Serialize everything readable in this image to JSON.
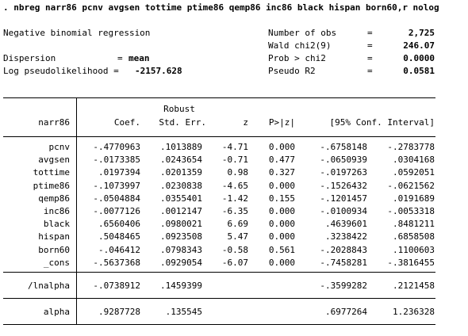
{
  "command": ". nbreg narr86 pcnv avgsen tottime ptime86 qemp86 inc86 black hispan born60,r nolog",
  "model_title": "Negative binomial regression",
  "dispersion_label": "Dispersion",
  "dispersion_eq": "=",
  "dispersion_value": "mean",
  "loglik_label": "Log pseudolikelihood =",
  "loglik_value": "-2157.628",
  "stats": [
    {
      "label": "Number of obs",
      "eq": "=",
      "value": "2,725"
    },
    {
      "label": "Wald chi2(9)",
      "eq": "=",
      "value": "246.07"
    },
    {
      "label": "Prob > chi2",
      "eq": "=",
      "value": "0.0000"
    },
    {
      "label": "Pseudo R2",
      "eq": "=",
      "value": "0.0581"
    }
  ],
  "header": {
    "depvar": "narr86",
    "robust": "Robust",
    "coef": "Coef.",
    "stderr": "Std. Err.",
    "z": "z",
    "p": "P>|z|",
    "ci": "[95% Conf. Interval]"
  },
  "rows": [
    {
      "var": "pcnv",
      "coef": "-.4770963",
      "se": ".1013889",
      "z": "-4.71",
      "p": "0.000",
      "lo": "-.6758148",
      "hi": "-.2783778"
    },
    {
      "var": "avgsen",
      "coef": "-.0173385",
      "se": ".0243654",
      "z": "-0.71",
      "p": "0.477",
      "lo": "-.0650939",
      "hi": ".0304168"
    },
    {
      "var": "tottime",
      "coef": ".0197394",
      "se": ".0201359",
      "z": "0.98",
      "p": "0.327",
      "lo": "-.0197263",
      "hi": ".0592051"
    },
    {
      "var": "ptime86",
      "coef": "-.1073997",
      "se": ".0230838",
      "z": "-4.65",
      "p": "0.000",
      "lo": "-.1526432",
      "hi": "-.0621562"
    },
    {
      "var": "qemp86",
      "coef": "-.0504884",
      "se": ".0355401",
      "z": "-1.42",
      "p": "0.155",
      "lo": "-.1201457",
      "hi": ".0191689"
    },
    {
      "var": "inc86",
      "coef": "-.0077126",
      "se": ".0012147",
      "z": "-6.35",
      "p": "0.000",
      "lo": "-.0100934",
      "hi": "-.0053318"
    },
    {
      "var": "black",
      "coef": ".6560406",
      "se": ".0980021",
      "z": "6.69",
      "p": "0.000",
      "lo": ".4639601",
      "hi": ".8481211"
    },
    {
      "var": "hispan",
      "coef": ".5048465",
      "se": ".0923508",
      "z": "5.47",
      "p": "0.000",
      "lo": ".3238422",
      "hi": ".6858508"
    },
    {
      "var": "born60",
      "coef": "-.046412",
      "se": ".0798343",
      "z": "-0.58",
      "p": "0.561",
      "lo": "-.2028843",
      "hi": ".1100603"
    },
    {
      "var": "_cons",
      "coef": "-.5637368",
      "se": ".0929054",
      "z": "-6.07",
      "p": "0.000",
      "lo": "-.7458281",
      "hi": "-.3816455"
    }
  ],
  "lnalpha": {
    "var": "/lnalpha",
    "coef": "-.0738912",
    "se": ".1459399",
    "lo": "-.3599282",
    "hi": ".2121458"
  },
  "alpha": {
    "var": "alpha",
    "coef": ".9287728",
    "se": ".135545",
    "lo": ".6977264",
    "hi": "1.236328"
  }
}
